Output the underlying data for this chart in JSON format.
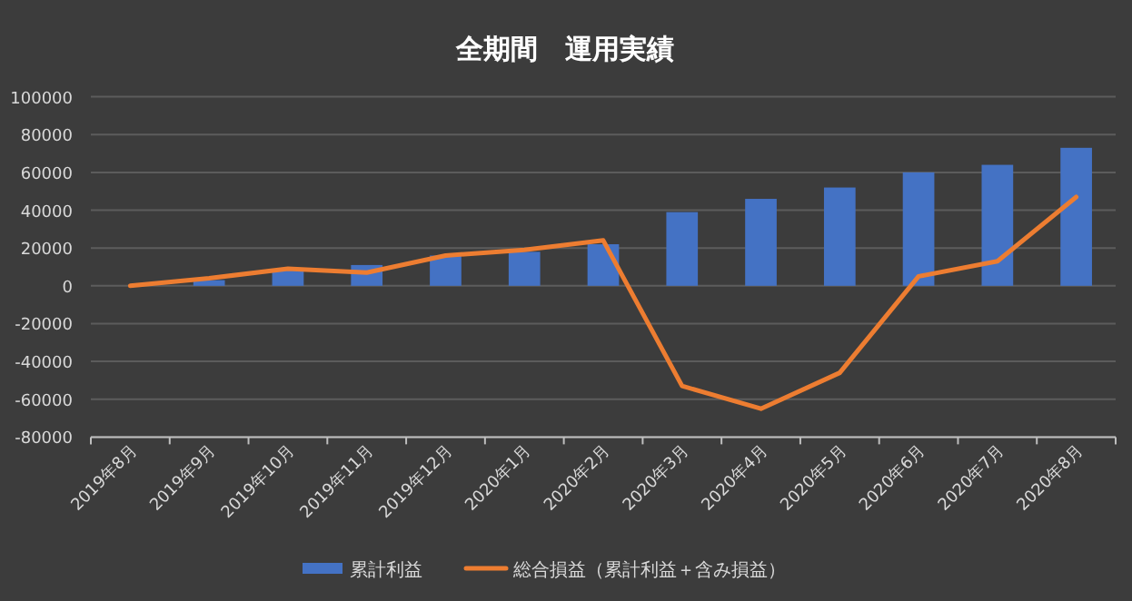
{
  "chart_data": {
    "type": "bar",
    "title": "全期間　運用実績",
    "categories": [
      "2019年8月",
      "2019年9月",
      "2019年10月",
      "2019年11月",
      "2019年12月",
      "2020年1月",
      "2020年2月",
      "2020年3月",
      "2020年4月",
      "2020年5月",
      "2020年6月",
      "2020年7月",
      "2020年8月"
    ],
    "series": [
      {
        "name": "累計利益",
        "color": "#4472c4",
        "values": [
          0,
          3000,
          9000,
          11000,
          16000,
          18000,
          22000,
          39000,
          46000,
          52000,
          60000,
          64000,
          73000
        ]
      },
      {
        "name": "総合損益（累計利益＋含み損益）",
        "type": "line",
        "color": "#ed7d31",
        "values": [
          0,
          4000,
          9000,
          7000,
          16000,
          19000,
          24000,
          -53000,
          -65000,
          -46000,
          5000,
          13000,
          47000
        ]
      }
    ],
    "ylim": [
      -80000,
      100000
    ],
    "yticks": [
      -80000,
      -60000,
      -40000,
      -20000,
      0,
      20000,
      40000,
      60000,
      80000,
      100000
    ],
    "grid": "y",
    "legend": "bottom"
  }
}
